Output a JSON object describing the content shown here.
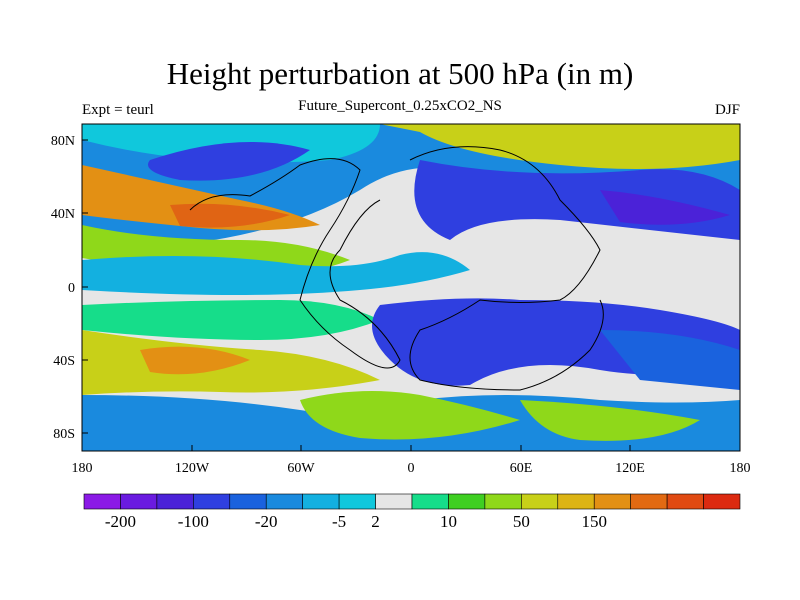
{
  "title": "Height perturbation at 500 hPa (in m)",
  "subtitle": "Future_Supercont_0.25xCO2_NS",
  "left_label": "Expt = teurl",
  "right_label": "DJF",
  "lat_ticks": [
    "80N",
    "40N",
    "0",
    "40S",
    "80S"
  ],
  "lon_ticks": [
    "180",
    "120W",
    "60W",
    "0",
    "60E",
    "120E",
    "180"
  ],
  "colorbar": {
    "labels": [
      "-200",
      "-100",
      "-20",
      "-5",
      "2",
      "10",
      "50",
      "150"
    ],
    "colors": [
      "#8b1ae6",
      "#6a1be0",
      "#4b22d8",
      "#2f3fe0",
      "#1a62de",
      "#1a8ade",
      "#13b0e0",
      "#10c8dc",
      "#e6e6e6",
      "#16dd8a",
      "#3fcf22",
      "#8fd81a",
      "#c8d018",
      "#dcb414",
      "#e39014",
      "#e26a12",
      "#e04a12",
      "#dc2a10"
    ]
  },
  "colors": {
    "strong_negative": "#2a34d8",
    "negative": "#1a6ade",
    "weak_negative": "#13b0e0",
    "neutral": "#e6e6e6",
    "weak_positive": "#16dd8a",
    "positive": "#8fd81a",
    "strong_positive": "#e39014",
    "extreme_positive": "#e06414"
  }
}
